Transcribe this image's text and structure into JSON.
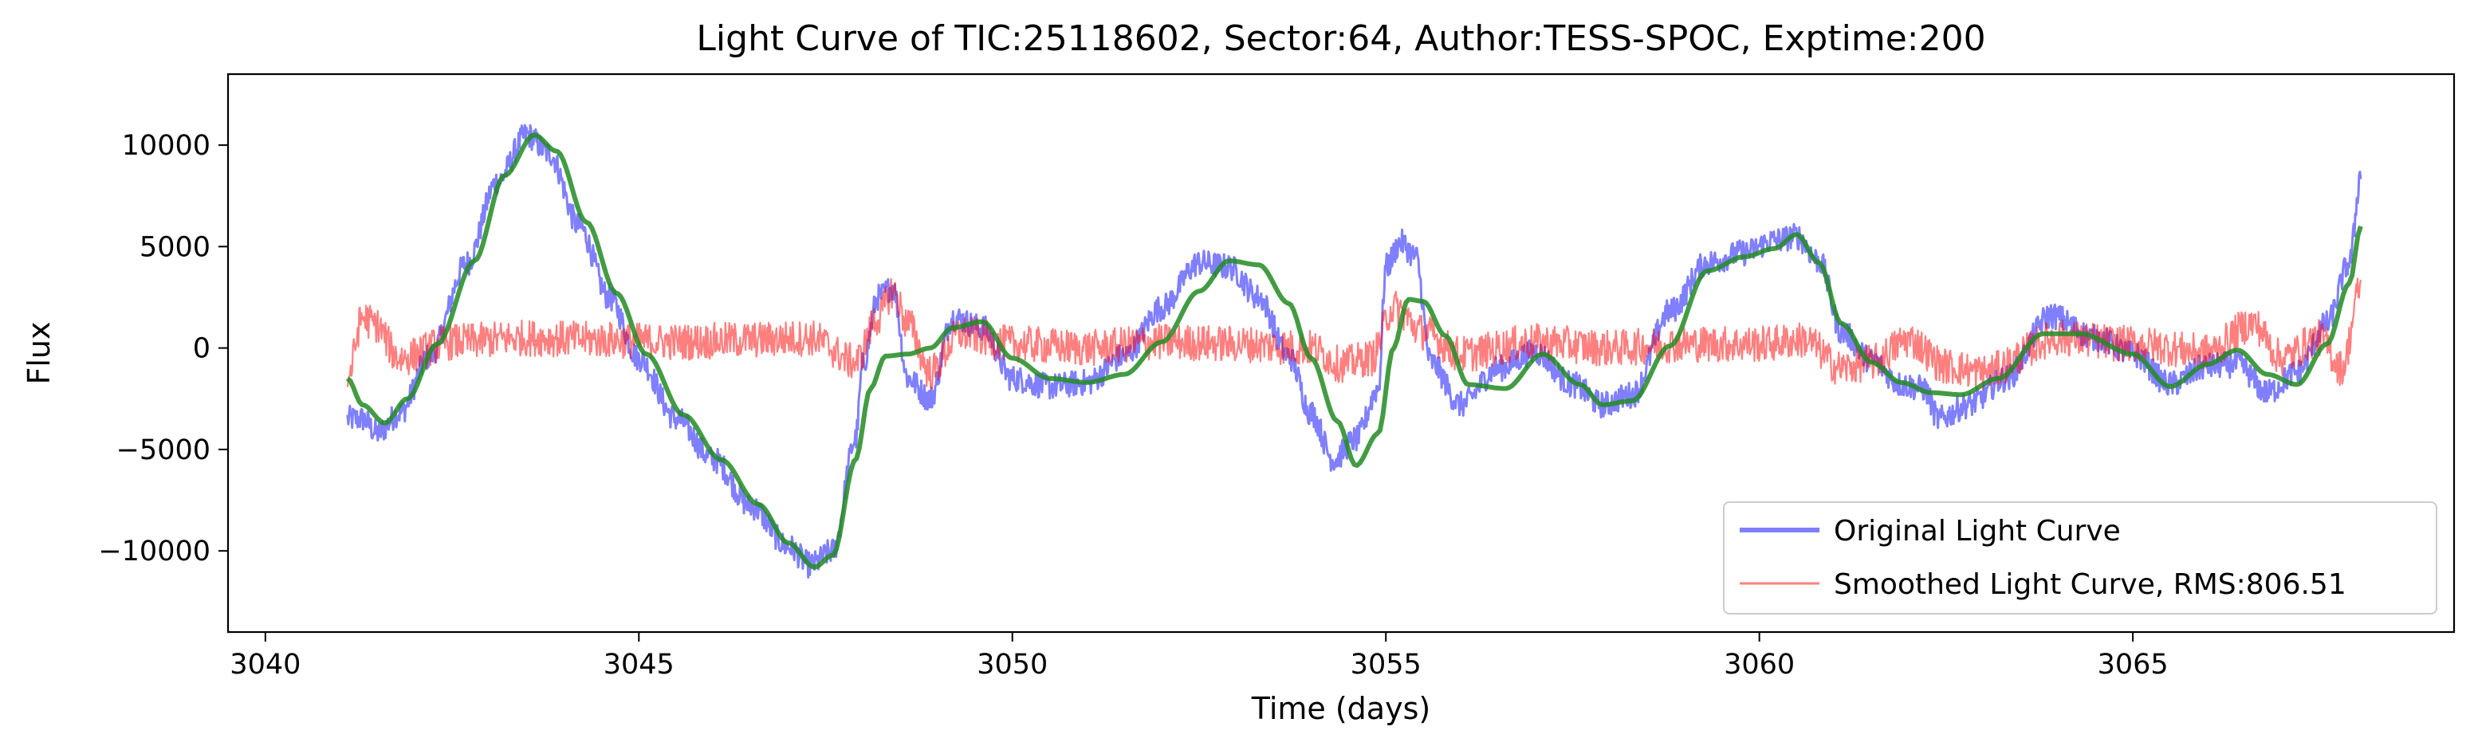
{
  "chart_data": {
    "type": "line",
    "title": "Light Curve of TIC:25118602, Sector:64, Author:TESS-SPOC, Exptime:200",
    "xlabel": "Time (days)",
    "ylabel": "Flux",
    "xlim": [
      3039.5,
      3069.3
    ],
    "ylim": [
      -14000,
      13500
    ],
    "x_ticks": [
      3040,
      3045,
      3050,
      3055,
      3060,
      3065
    ],
    "y_ticks": [
      -10000,
      -5000,
      0,
      5000,
      10000
    ],
    "y_tick_labels": [
      "−10000",
      "−5000",
      "0",
      "5000",
      "10000"
    ],
    "legend_position": "lower-right",
    "grid": false,
    "series": [
      {
        "name": "Original Light Curve",
        "color": "#0000ff",
        "alpha": 0.5,
        "noise_amplitude": 650,
        "x": [
          3041.1,
          3041.3,
          3041.5,
          3041.8,
          3042.2,
          3042.7,
          3043.1,
          3043.5,
          3043.8,
          3044.2,
          3044.6,
          3045.0,
          3045.5,
          3046.0,
          3046.5,
          3047.0,
          3047.3,
          3047.6,
          3047.9,
          3048.0,
          3048.2,
          3048.4,
          3048.6,
          3048.9,
          3049.2,
          3049.6,
          3050.0,
          3050.5,
          3051.0,
          3051.5,
          3052.0,
          3052.5,
          3052.9,
          3053.3,
          3053.7,
          3054.0,
          3054.3,
          3054.6,
          3054.9,
          3055.0,
          3055.2,
          3055.4,
          3055.6,
          3056.0,
          3056.5,
          3057.0,
          3057.5,
          3057.9,
          3058.3,
          3058.8,
          3059.3,
          3059.8,
          3060.2,
          3060.5,
          3060.8,
          3061.1,
          3061.5,
          3061.9,
          3062.2,
          3062.4,
          3062.8,
          3063.3,
          3063.9,
          3064.5,
          3065.0,
          3065.5,
          3066.0,
          3066.4,
          3066.8,
          3067.2,
          3067.6,
          3067.9,
          3068.05
        ],
        "y": [
          -3500,
          -3500,
          -4200,
          -3200,
          -400,
          4200,
          8200,
          10500,
          9600,
          6000,
          2500,
          -500,
          -3500,
          -5500,
          -7800,
          -9800,
          -10700,
          -10000,
          -4500,
          -800,
          2500,
          3000,
          -1500,
          -2500,
          1500,
          1000,
          -1500,
          -1900,
          -1700,
          -400,
          2000,
          4200,
          4000,
          2500,
          -400,
          -3200,
          -5500,
          -4500,
          -2000,
          4000,
          5200,
          4500,
          -700,
          -2800,
          -1000,
          -200,
          -1800,
          -2800,
          -2300,
          1800,
          4200,
          4700,
          5300,
          5500,
          4300,
          800,
          -600,
          -1800,
          -2000,
          -3500,
          -2800,
          -1500,
          1600,
          500,
          -300,
          -1800,
          -900,
          -800,
          -2200,
          -1200,
          1200,
          4200,
          8500
        ]
      },
      {
        "name": "Smoothed Light Curve, RMS:806.51",
        "color": "#ff0000",
        "alpha": 0.5,
        "noise_amplitude": 900,
        "x": [
          3041.1,
          3041.3,
          3041.45,
          3041.8,
          3042.5,
          3043.5,
          3044.5,
          3045.5,
          3046.5,
          3047.3,
          3047.9,
          3048.2,
          3048.4,
          3048.6,
          3048.9,
          3049.3,
          3050.0,
          3051.0,
          3052.0,
          3053.0,
          3054.0,
          3054.4,
          3054.8,
          3055.1,
          3055.5,
          3056.0,
          3057.0,
          3058.0,
          3059.0,
          3060.0,
          3060.6,
          3061.1,
          3061.5,
          3062.0,
          3062.5,
          3063.0,
          3064.0,
          3065.0,
          3066.0,
          3066.6,
          3067.0,
          3067.5,
          3067.8,
          3068.05
        ],
        "y": [
          -1500,
          1500,
          1200,
          -500,
          300,
          500,
          400,
          300,
          400,
          500,
          -700,
          1500,
          2800,
          1200,
          -1200,
          700,
          200,
          0,
          300,
          200,
          0,
          -800,
          -500,
          2000,
          800,
          -300,
          300,
          0,
          200,
          200,
          400,
          -1000,
          -700,
          400,
          -900,
          -1200,
          500,
          200,
          -200,
          1200,
          -500,
          500,
          -1000,
          3000
        ]
      },
      {
        "name": "",
        "color": "#228b22",
        "alpha": 0.85,
        "noise_amplitude": 0,
        "x": [
          3041.1,
          3041.3,
          3041.6,
          3041.9,
          3042.3,
          3042.8,
          3043.2,
          3043.6,
          3043.9,
          3044.3,
          3044.7,
          3045.1,
          3045.6,
          3046.1,
          3046.6,
          3047.0,
          3047.35,
          3047.6,
          3047.9,
          3048.1,
          3048.3,
          3048.6,
          3048.9,
          3049.2,
          3049.6,
          3050.0,
          3050.5,
          3051.0,
          3051.5,
          3052.0,
          3052.5,
          3052.9,
          3053.3,
          3053.7,
          3054.0,
          3054.35,
          3054.6,
          3054.9,
          3055.1,
          3055.3,
          3055.5,
          3055.8,
          3056.1,
          3056.6,
          3057.1,
          3057.6,
          3057.9,
          3058.3,
          3058.8,
          3059.3,
          3059.8,
          3060.2,
          3060.5,
          3060.8,
          3061.1,
          3061.5,
          3061.9,
          3062.3,
          3062.7,
          3063.2,
          3063.8,
          3064.3,
          3065.0,
          3065.5,
          3066.0,
          3066.4,
          3066.8,
          3067.2,
          3067.6,
          3067.9,
          3068.05
        ],
        "y": [
          -1500,
          -2800,
          -3700,
          -2500,
          200,
          4300,
          8500,
          10500,
          9700,
          6200,
          2700,
          -300,
          -3300,
          -5500,
          -7700,
          -9600,
          -10800,
          -10200,
          -5500,
          -2000,
          -400,
          -300,
          0,
          1000,
          1300,
          -500,
          -1500,
          -1700,
          -1300,
          300,
          2800,
          4300,
          4100,
          2200,
          -500,
          -3600,
          -5800,
          -4200,
          0,
          2400,
          2300,
          600,
          -1800,
          -2000,
          -300,
          -1800,
          -2800,
          -2600,
          100,
          3800,
          4500,
          4900,
          5600,
          4200,
          1200,
          -700,
          -1700,
          -2200,
          -2300,
          -1500,
          700,
          700,
          -300,
          -1900,
          -800,
          -100,
          -1300,
          -1800,
          200,
          3200,
          6000
        ]
      }
    ]
  }
}
